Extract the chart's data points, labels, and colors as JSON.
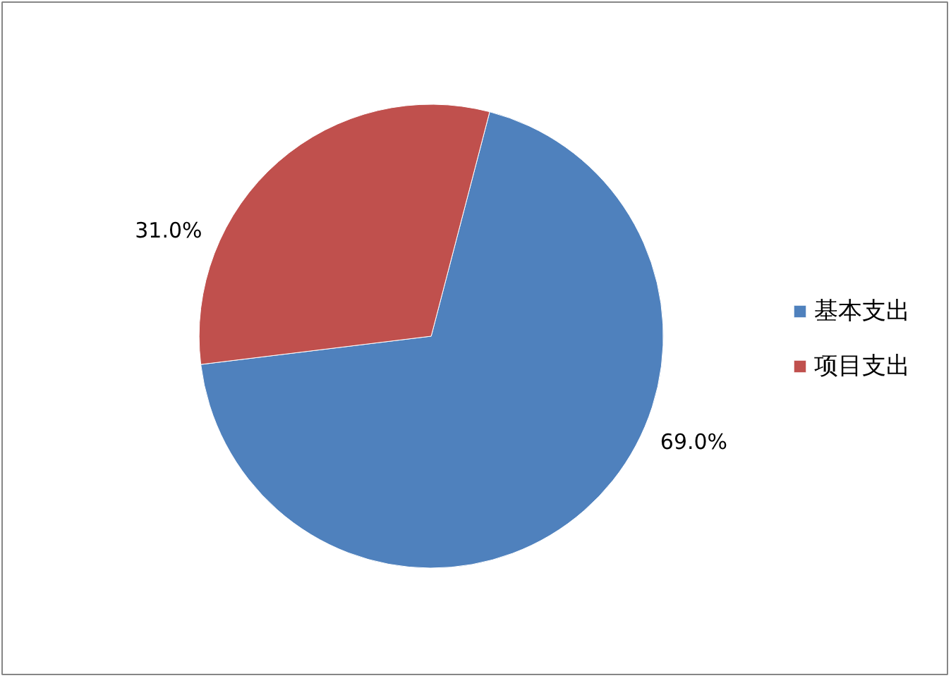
{
  "chart_data": {
    "type": "pie",
    "categories": [
      "基本支出",
      "项目支出"
    ],
    "values": [
      69.0,
      31.0
    ],
    "colors": [
      "#4f81bd",
      "#c0504d"
    ],
    "value_labels": [
      "69.0%",
      "31.0%"
    ],
    "legend": "right"
  }
}
